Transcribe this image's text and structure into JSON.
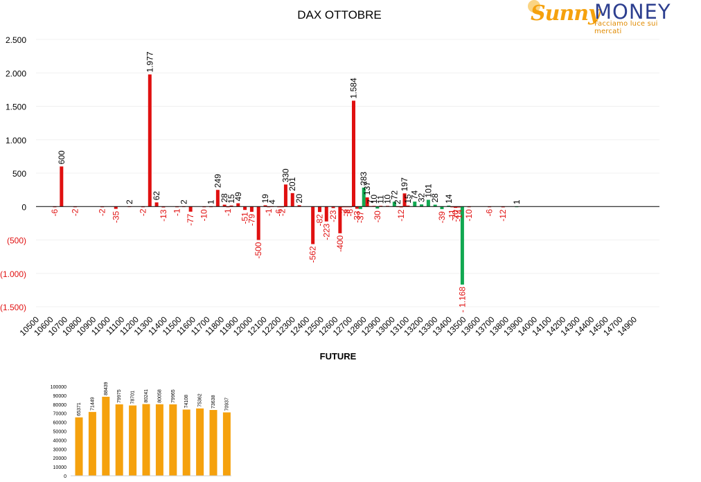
{
  "logo": {
    "brand_part1": "Sunny",
    "brand_part2": "MONEY",
    "tagline": "Facciamo luce sui mercati"
  },
  "colors": {
    "negative": "#e01010",
    "positive": "#11a851",
    "future_bar": "#f5a10d",
    "axis": "#000000"
  },
  "chart_data": [
    {
      "type": "bar",
      "title": "DAX OTTOBRE",
      "ylim": [
        -1500,
        2500
      ],
      "yticks": [
        2500,
        2000,
        1500,
        1000,
        500,
        0,
        -500,
        -1000,
        -1500
      ],
      "ytick_labels": [
        "2.500",
        "2.000",
        "1.500",
        "1.000",
        "500",
        "0",
        "(500)",
        "(1.000)",
        "(1.500)"
      ],
      "grid": true,
      "xtick_labels": [
        "10500",
        "10600",
        "10700",
        "10800",
        "10900",
        "11000",
        "11100",
        "11200",
        "11300",
        "11400",
        "11500",
        "11600",
        "11700",
        "11800",
        "11900",
        "12000",
        "12100",
        "12200",
        "12300",
        "12400",
        "12500",
        "12600",
        "12700",
        "12800",
        "12900",
        "13000",
        "13100",
        "13200",
        "13300",
        "13400",
        "13500",
        "13600",
        "13700",
        "13800",
        "13900",
        "14000",
        "14100",
        "14200",
        "14300",
        "14400",
        "14500",
        "14700",
        "14900"
      ],
      "bars": [
        {
          "x": 10500,
          "value": -6,
          "label": "-6",
          "color": "negative"
        },
        {
          "x": 10550,
          "value": 600,
          "label": "600",
          "color": "negative"
        },
        {
          "x": 10650,
          "value": -2,
          "label": "-2",
          "color": "negative"
        },
        {
          "x": 10850,
          "value": -2,
          "label": "-2",
          "color": "negative"
        },
        {
          "x": 10950,
          "value": -35,
          "label": "-35",
          "color": "negative"
        },
        {
          "x": 11050,
          "value": 2,
          "label": "2",
          "color": "negative"
        },
        {
          "x": 11150,
          "value": -2,
          "label": "-2",
          "color": "negative"
        },
        {
          "x": 11200,
          "value": 1977,
          "label": "1.977",
          "color": "negative"
        },
        {
          "x": 11250,
          "value": 62,
          "label": "62",
          "color": "negative"
        },
        {
          "x": 11300,
          "value": -13,
          "label": "-13",
          "color": "negative"
        },
        {
          "x": 11400,
          "value": -1,
          "label": "-1",
          "color": "negative"
        },
        {
          "x": 11450,
          "value": 2,
          "label": "2",
          "color": "negative"
        },
        {
          "x": 11500,
          "value": -77,
          "label": "-77",
          "color": "negative"
        },
        {
          "x": 11600,
          "value": -10,
          "label": "-10",
          "color": "negative"
        },
        {
          "x": 11650,
          "value": 1,
          "label": "1",
          "color": "negative"
        },
        {
          "x": 11700,
          "value": 249,
          "label": "249",
          "color": "negative"
        },
        {
          "x": 11750,
          "value": 28,
          "label": "28",
          "color": "negative"
        },
        {
          "x": 11775,
          "value": -1,
          "label": "-1",
          "color": "negative"
        },
        {
          "x": 11800,
          "value": 15,
          "label": "15",
          "color": "negative"
        },
        {
          "x": 11850,
          "value": 49,
          "label": "49",
          "color": "negative"
        },
        {
          "x": 11900,
          "value": -51,
          "label": "-51",
          "color": "negative"
        },
        {
          "x": 11950,
          "value": -79,
          "label": "-79",
          "color": "negative"
        },
        {
          "x": 12000,
          "value": -500,
          "label": "-500",
          "color": "negative"
        },
        {
          "x": 12050,
          "value": 19,
          "label": "19",
          "color": "negative"
        },
        {
          "x": 12075,
          "value": -1,
          "label": "-1",
          "color": "negative"
        },
        {
          "x": 12100,
          "value": 4,
          "label": "4",
          "color": "negative"
        },
        {
          "x": 12150,
          "value": -6,
          "label": "-6",
          "color": "negative"
        },
        {
          "x": 12175,
          "value": -2,
          "label": "-2",
          "color": "negative"
        },
        {
          "x": 12200,
          "value": 330,
          "label": "330",
          "color": "negative"
        },
        {
          "x": 12250,
          "value": 201,
          "label": "201",
          "color": "negative"
        },
        {
          "x": 12300,
          "value": 20,
          "label": "20",
          "color": "negative"
        },
        {
          "x": 12400,
          "value": -562,
          "label": "-562",
          "color": "negative"
        },
        {
          "x": 12450,
          "value": -82,
          "label": "-82",
          "color": "negative"
        },
        {
          "x": 12500,
          "value": -223,
          "label": "-223",
          "color": "negative"
        },
        {
          "x": 12550,
          "value": -23,
          "label": "-23",
          "color": "negative"
        },
        {
          "x": 12600,
          "value": -400,
          "label": "-400",
          "color": "negative"
        },
        {
          "x": 12625,
          "value": -2,
          "label": "-2",
          "color": "negative"
        },
        {
          "x": 12650,
          "value": -8,
          "label": "-8",
          "color": "negative"
        },
        {
          "x": 12675,
          "value": -6,
          "label": "-6",
          "color": "negative"
        },
        {
          "x": 12700,
          "value": 1584,
          "label": "1.584",
          "color": "negative"
        },
        {
          "x": 12725,
          "value": -33,
          "label": "-33",
          "color": "negative"
        },
        {
          "x": 12750,
          "value": -37,
          "label": "-37",
          "color": "positive"
        },
        {
          "x": 12775,
          "value": 283,
          "label": "283",
          "color": "positive"
        },
        {
          "x": 12800,
          "value": 137,
          "label": "137",
          "color": "negative"
        },
        {
          "x": 12825,
          "value": 7,
          "label": "7",
          "color": "negative"
        },
        {
          "x": 12850,
          "value": 10,
          "label": "10",
          "color": "negative"
        },
        {
          "x": 12875,
          "value": -30,
          "label": "-30",
          "color": "positive"
        },
        {
          "x": 12900,
          "value": 11,
          "label": "11",
          "color": "negative"
        },
        {
          "x": 12950,
          "value": 10,
          "label": "10",
          "color": "negative"
        },
        {
          "x": 13000,
          "value": 72,
          "label": "72",
          "color": "positive"
        },
        {
          "x": 13025,
          "value": 2,
          "label": "2",
          "color": "negative"
        },
        {
          "x": 13050,
          "value": -12,
          "label": "-12",
          "color": "negative"
        },
        {
          "x": 13075,
          "value": 197,
          "label": "197",
          "color": "negative"
        },
        {
          "x": 13100,
          "value": 15,
          "label": "15",
          "color": "negative"
        },
        {
          "x": 13150,
          "value": 74,
          "label": "74",
          "color": "positive"
        },
        {
          "x": 13200,
          "value": 32,
          "label": "32",
          "color": "positive"
        },
        {
          "x": 13250,
          "value": 101,
          "label": "101",
          "color": "positive"
        },
        {
          "x": 13300,
          "value": 28,
          "label": "28",
          "color": "positive"
        },
        {
          "x": 13350,
          "value": -39,
          "label": "-39",
          "color": "positive"
        },
        {
          "x": 13400,
          "value": 14,
          "label": "14",
          "color": "positive"
        },
        {
          "x": 13425,
          "value": -11,
          "label": "-11",
          "color": "negative"
        },
        {
          "x": 13450,
          "value": -20,
          "label": "-20",
          "color": "negative"
        },
        {
          "x": 13475,
          "value": -14,
          "label": "-14",
          "color": "negative"
        },
        {
          "x": 13500,
          "value": -1168,
          "label": "- 1.168",
          "color": "positive"
        },
        {
          "x": 13550,
          "value": -10,
          "label": "-10",
          "color": "negative"
        },
        {
          "x": 13700,
          "value": -6,
          "label": "-6",
          "color": "negative"
        },
        {
          "x": 13800,
          "value": -12,
          "label": "-12",
          "color": "negative"
        },
        {
          "x": 13900,
          "value": 1,
          "label": "1",
          "color": "positive"
        }
      ]
    },
    {
      "type": "bar",
      "title": "FUTURE",
      "ylim": [
        0,
        100000
      ],
      "yticks": [
        0,
        10000,
        20000,
        30000,
        40000,
        50000,
        60000,
        70000,
        80000,
        90000,
        100000
      ],
      "ytick_labels": [
        "0",
        "10000",
        "20000",
        "30000",
        "40000",
        "50000",
        "60000",
        "70000",
        "80000",
        "90000",
        "100000"
      ],
      "values": [
        65371,
        71449,
        88439,
        79975,
        78701,
        80241,
        80058,
        79965,
        74108,
        75362,
        73638,
        70937
      ],
      "labels": [
        "65371",
        "71449",
        "88439",
        "79975",
        "78701",
        "80241",
        "80058",
        "79965",
        "74108",
        "75362",
        "73638",
        "70937"
      ]
    }
  ]
}
